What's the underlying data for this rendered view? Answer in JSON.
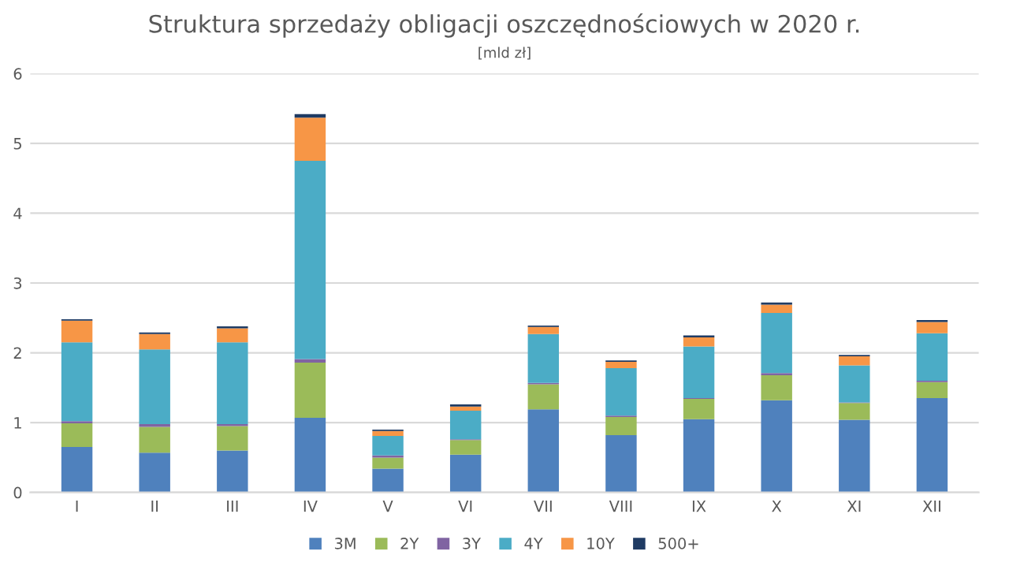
{
  "chart_data": {
    "type": "bar",
    "title": "Struktura sprzedaży obligacji oszczędnościowych w 2020 r.",
    "subtitle": "[mld zł]",
    "categories": [
      "I",
      "II",
      "III",
      "IV",
      "V",
      "VI",
      "VII",
      "VIII",
      "IX",
      "X",
      "XI",
      "XII"
    ],
    "stacked": true,
    "ylim": [
      0,
      6
    ],
    "yticks": [
      0,
      1,
      2,
      3,
      4,
      5,
      6
    ],
    "grid": "y",
    "legend": "bottom",
    "series": [
      {
        "name": "3M",
        "color": "#4f81bd",
        "values": [
          0.65,
          0.57,
          0.6,
          1.07,
          0.34,
          0.54,
          1.19,
          0.82,
          1.05,
          1.32,
          1.04,
          1.35
        ]
      },
      {
        "name": "2Y",
        "color": "#9bbb59",
        "values": [
          0.34,
          0.37,
          0.35,
          0.79,
          0.16,
          0.21,
          0.36,
          0.26,
          0.29,
          0.36,
          0.24,
          0.23
        ]
      },
      {
        "name": "3Y",
        "color": "#8064a2",
        "values": [
          0.03,
          0.04,
          0.03,
          0.05,
          0.03,
          0.01,
          0.02,
          0.02,
          0.01,
          0.03,
          0.01,
          0.02
        ]
      },
      {
        "name": "4Y",
        "color": "#4bacc6",
        "values": [
          1.13,
          1.07,
          1.17,
          2.84,
          0.28,
          0.41,
          0.7,
          0.68,
          0.74,
          0.86,
          0.53,
          0.68
        ]
      },
      {
        "name": "10Y",
        "color": "#f79646",
        "values": [
          0.31,
          0.22,
          0.2,
          0.62,
          0.07,
          0.06,
          0.1,
          0.09,
          0.13,
          0.12,
          0.13,
          0.16
        ]
      },
      {
        "name": "500+",
        "color": "#1f3b63",
        "values": [
          0.02,
          0.02,
          0.03,
          0.05,
          0.02,
          0.03,
          0.02,
          0.02,
          0.03,
          0.03,
          0.02,
          0.03
        ]
      }
    ]
  }
}
